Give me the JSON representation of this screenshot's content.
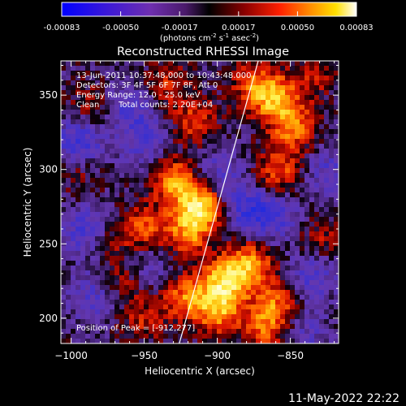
{
  "colorbar": {
    "ticks": [
      "-0.00083",
      "-0.00050",
      "-0.00017",
      "0.00017",
      "0.00050",
      "0.00083"
    ],
    "units_main": "(photons cm",
    "units_sup1": "-2",
    "units_mid1": " s",
    "units_sup2": "-1",
    "units_mid2": " asec",
    "units_sup3": "-2",
    "units_end": ")"
  },
  "info": {
    "time_range": "13-Jun-2011 10:37:48.000 to 10:43:48.000",
    "detectors": "Detectors: 3F 4F 5F 6F 7F 8F, Att 0",
    "energy": "Energy Range: 12.0 - 25.0 keV",
    "clean": "Clean",
    "counts": "Total counts: 2.20E+04",
    "peak": "Position of Peak = [-912,277]"
  },
  "footer_timestamp": "11-May-2022 22:22",
  "chart_data": {
    "type": "heatmap",
    "title": "Reconstructed RHESSI Image",
    "xlabel": "Heliocentric X (arcsec)",
    "ylabel": "Heliocentric Y (arcsec)",
    "xlim": [
      -1007,
      -817
    ],
    "ylim": [
      183,
      373
    ],
    "xticks": [
      -1000,
      -950,
      -900,
      -850
    ],
    "yticks": [
      200,
      250,
      300,
      350
    ],
    "xtick_labels": [
      "−1000",
      "−950",
      "−900",
      "−850"
    ],
    "ytick_labels": [
      "200",
      "250",
      "300",
      "350"
    ],
    "colormap": "RHESSI: blue-purple (negative) to black, red, orange, yellow, white (positive)",
    "value_range": [
      -0.00083,
      0.00083
    ],
    "peak": [
      -912,
      277
    ],
    "limb_line": [
      [
        -926,
        183
      ],
      [
        -872,
        373
      ]
    ],
    "hotspots": [
      {
        "x": -912,
        "y": 277,
        "intensity": 1.0
      },
      {
        "x": -930,
        "y": 295,
        "intensity": 0.7
      },
      {
        "x": -920,
        "y": 258,
        "intensity": 0.6
      },
      {
        "x": -950,
        "y": 262,
        "intensity": 0.55
      },
      {
        "x": -860,
        "y": 350,
        "intensity": 0.75
      },
      {
        "x": -848,
        "y": 330,
        "intensity": 0.6
      },
      {
        "x": -875,
        "y": 360,
        "intensity": 0.5
      },
      {
        "x": -858,
        "y": 300,
        "intensity": 0.55
      },
      {
        "x": -895,
        "y": 225,
        "intensity": 0.85
      },
      {
        "x": -878,
        "y": 237,
        "intensity": 0.75
      },
      {
        "x": -900,
        "y": 205,
        "intensity": 0.7
      },
      {
        "x": -922,
        "y": 215,
        "intensity": 0.6
      },
      {
        "x": -860,
        "y": 210,
        "intensity": 0.55
      },
      {
        "x": -868,
        "y": 193,
        "intensity": 0.5
      },
      {
        "x": -935,
        "y": 360,
        "intensity": 0.4
      },
      {
        "x": -915,
        "y": 335,
        "intensity": 0.45
      },
      {
        "x": -950,
        "y": 200,
        "intensity": 0.35
      },
      {
        "x": -985,
        "y": 345,
        "intensity": 0.3
      },
      {
        "x": -995,
        "y": 300,
        "intensity": 0.25
      },
      {
        "x": -975,
        "y": 255,
        "intensity": 0.25
      },
      {
        "x": -965,
        "y": 225,
        "intensity": 0.3
      },
      {
        "x": -830,
        "y": 255,
        "intensity": 0.3
      },
      {
        "x": -835,
        "y": 365,
        "intensity": 0.3
      }
    ],
    "coldspots": [
      {
        "x": -995,
        "y": 320,
        "intensity": 0.8
      },
      {
        "x": -990,
        "y": 260,
        "intensity": 0.7
      },
      {
        "x": -960,
        "y": 345,
        "intensity": 0.6
      },
      {
        "x": -950,
        "y": 320,
        "intensity": 0.5
      },
      {
        "x": -880,
        "y": 275,
        "intensity": 0.7
      },
      {
        "x": -860,
        "y": 270,
        "intensity": 0.6
      },
      {
        "x": -835,
        "y": 230,
        "intensity": 0.6
      },
      {
        "x": -825,
        "y": 300,
        "intensity": 0.5
      },
      {
        "x": -985,
        "y": 215,
        "intensity": 0.55
      },
      {
        "x": -945,
        "y": 235,
        "intensity": 0.4
      },
      {
        "x": -900,
        "y": 300,
        "intensity": 0.5
      },
      {
        "x": -840,
        "y": 190,
        "intensity": 0.4
      }
    ]
  }
}
